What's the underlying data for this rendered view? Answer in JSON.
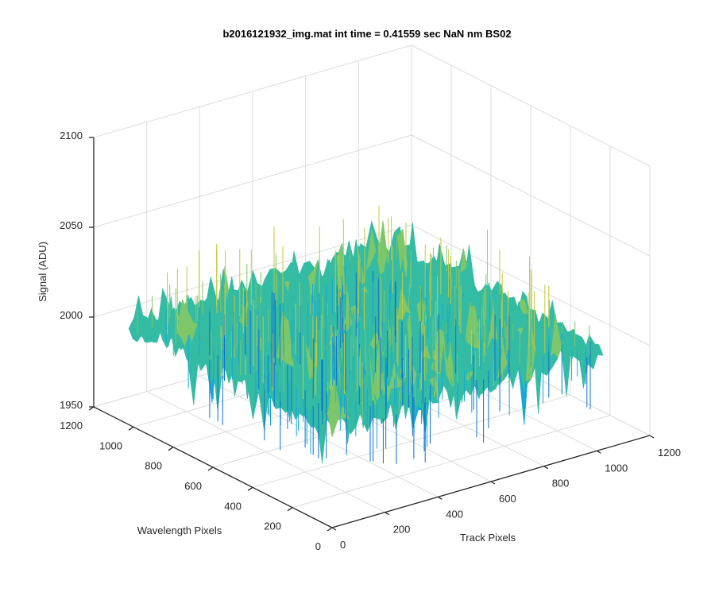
{
  "chart_data": {
    "type": "surface",
    "title": "b2016121932_img.mat int time = 0.41559 sec  NaN nm BS02",
    "xlabel": "Track Pixels",
    "ylabel": "Wavelength Pixels",
    "zlabel": "Signal (ADU)",
    "xlim": [
      0,
      1200
    ],
    "ylim": [
      0,
      1200
    ],
    "zlim": [
      1950,
      2100
    ],
    "x_ticks": [
      0,
      200,
      400,
      600,
      800,
      1000,
      1200
    ],
    "y_ticks": [
      0,
      200,
      400,
      600,
      800,
      1000,
      1200
    ],
    "z_ticks": [
      1950,
      2000,
      2050,
      2100
    ],
    "x_tick_labels": [
      "0",
      "200",
      "400",
      "600",
      "800",
      "1000",
      "1200"
    ],
    "y_tick_labels": [
      "0",
      "200",
      "400",
      "600",
      "800",
      "1000",
      "1200"
    ],
    "z_tick_labels": [
      "1950",
      "2000",
      "2050",
      "2100"
    ],
    "data_extent": {
      "x": [
        0,
        1024
      ],
      "y": [
        0,
        1024
      ]
    },
    "signal_mean": 2005,
    "signal_range": [
      1960,
      2045
    ],
    "colormap": [
      "#0b6fd6",
      "#16a8d8",
      "#34bba4",
      "#7ec66a",
      "#c5c93e"
    ],
    "grid": true
  }
}
